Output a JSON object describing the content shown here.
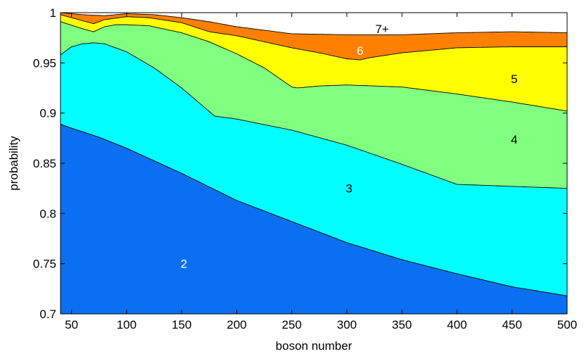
{
  "chart_data": {
    "type": "area",
    "xlabel": "boson number",
    "ylabel": "probability",
    "xlim": [
      40,
      500
    ],
    "ylim": [
      0.7,
      1.0
    ],
    "xticks": [
      50,
      100,
      150,
      200,
      250,
      300,
      350,
      400,
      450,
      500
    ],
    "yticks": [
      0.7,
      0.75,
      0.8,
      0.85,
      0.9,
      0.95,
      1
    ],
    "xtick_labels": [
      "50",
      "100",
      "150",
      "200",
      "250",
      "300",
      "350",
      "400",
      "450",
      "500"
    ],
    "ytick_labels": [
      "0.7",
      "0.75",
      "0.8",
      "0.85",
      "0.9",
      "0.95",
      "1"
    ],
    "grid": false,
    "series": [
      {
        "name": "2",
        "color": "#0a6ff0",
        "label_color": "#ffffff",
        "label_x": 152,
        "label_y": 0.75,
        "x": [
          40,
          50,
          75,
          100,
          150,
          200,
          250,
          300,
          350,
          400,
          450,
          500
        ],
        "y": [
          0.889,
          0.885,
          0.876,
          0.865,
          0.84,
          0.813,
          0.792,
          0.771,
          0.754,
          0.74,
          0.727,
          0.718
        ]
      },
      {
        "name": "3",
        "color": "#00ffff",
        "label_color": "#000000",
        "label_x": 302,
        "label_y": 0.825,
        "x": [
          40,
          50,
          60,
          70,
          80,
          100,
          125,
          150,
          180,
          200,
          250,
          300,
          350,
          400,
          450,
          500
        ],
        "y": [
          0.958,
          0.966,
          0.969,
          0.97,
          0.969,
          0.961,
          0.945,
          0.925,
          0.897,
          0.894,
          0.883,
          0.868,
          0.849,
          0.829,
          0.827,
          0.825
        ]
      },
      {
        "name": "4",
        "color": "#80ff80",
        "label_color": "#000000",
        "label_x": 452,
        "label_y": 0.874,
        "x": [
          40,
          60,
          70,
          80,
          90,
          100,
          120,
          150,
          175,
          200,
          225,
          250,
          255,
          275,
          300,
          350,
          400,
          450,
          500
        ],
        "y": [
          0.991,
          0.984,
          0.981,
          0.986,
          0.988,
          0.988,
          0.987,
          0.98,
          0.971,
          0.959,
          0.945,
          0.926,
          0.925,
          0.927,
          0.928,
          0.926,
          0.919,
          0.911,
          0.902
        ]
      },
      {
        "name": "5",
        "color": "#ffff00",
        "label_color": "#000000",
        "label_x": 452,
        "label_y": 0.934,
        "x": [
          40,
          60,
          70,
          80,
          100,
          120,
          150,
          175,
          200,
          225,
          250,
          275,
          300,
          312,
          320,
          350,
          400,
          450,
          500
        ],
        "y": [
          0.998,
          0.992,
          0.989,
          0.993,
          0.996,
          0.995,
          0.99,
          0.981,
          0.977,
          0.971,
          0.965,
          0.96,
          0.954,
          0.953,
          0.955,
          0.96,
          0.965,
          0.966,
          0.966
        ]
      },
      {
        "name": "6",
        "color": "#ff8000",
        "label_color": "#ffffff",
        "label_x": 312,
        "label_y": 0.962,
        "x": [
          40,
          60,
          80,
          100,
          125,
          150,
          175,
          200,
          250,
          300,
          350,
          400,
          450,
          500
        ],
        "y": [
          1.0,
          0.998,
          0.997,
          0.999,
          0.998,
          0.995,
          0.991,
          0.986,
          0.979,
          0.978,
          0.978,
          0.98,
          0.981,
          0.98
        ]
      },
      {
        "name": "7+",
        "color": "#ffffff",
        "label_color": "#000000",
        "label_x": 332,
        "label_y": 0.984,
        "x": [
          40,
          500
        ],
        "y": [
          1.0,
          1.0
        ]
      }
    ]
  }
}
